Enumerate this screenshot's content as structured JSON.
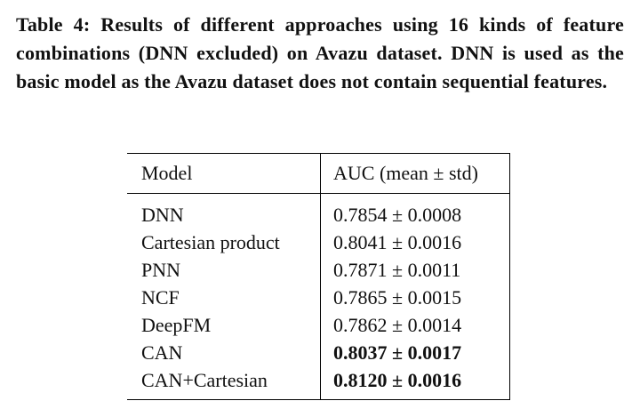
{
  "caption": "Table 4: Results of different approaches using 16 kinds of feature combinations (DNN excluded) on Avazu dataset. DNN is used as the basic model as the Avazu dataset does not contain sequential features.",
  "table": {
    "header": [
      "Model",
      "AUC (mean ± std)"
    ],
    "rows": [
      [
        "DNN",
        "0.7854 ± 0.0008"
      ],
      [
        "Cartesian product",
        "0.8041 ± 0.0016"
      ],
      [
        "PNN",
        "0.7871 ± 0.0011"
      ],
      [
        "NCF",
        "0.7865 ± 0.0015"
      ],
      [
        "DeepFM",
        "0.7862 ± 0.0014"
      ],
      [
        "CAN",
        "0.8037 ± 0.0017"
      ],
      [
        "CAN+Cartesian",
        "0.8120 ± 0.0016"
      ]
    ]
  }
}
